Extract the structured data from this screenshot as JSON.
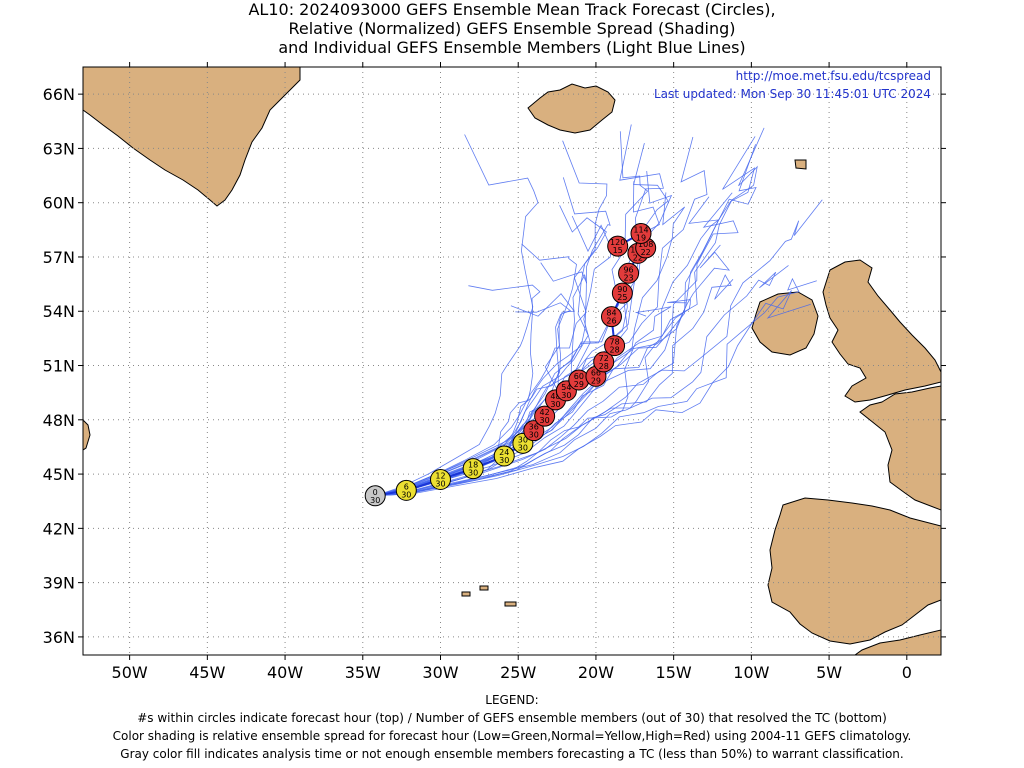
{
  "title": {
    "line1": "AL10: 2024093000 GEFS Ensemble Mean Track Forecast (Circles),",
    "line2": "Relative (Normalized) GEFS Ensemble Spread (Shading)",
    "line3": "and Individual GEFS Ensemble Members (Light Blue Lines)"
  },
  "header": {
    "url": "http://moe.met.fsu.edu/tcspread",
    "updated": "Last updated: Mon Sep 30 11:45:01 UTC 2024"
  },
  "axes": {
    "lat_labels": [
      "66N",
      "63N",
      "60N",
      "57N",
      "54N",
      "51N",
      "48N",
      "45N",
      "42N",
      "39N",
      "36N"
    ],
    "lon_labels": [
      "50W",
      "45W",
      "40W",
      "35W",
      "30W",
      "25W",
      "20W",
      "15W",
      "10W",
      "5W",
      "0"
    ],
    "lat_range": [
      35,
      67.5
    ],
    "lon_range": [
      -53,
      2.2
    ]
  },
  "colors": {
    "land": "#d9b07f",
    "member_lines": "#4466ee",
    "mean_track": "#1a35d8",
    "analysis": "#c8c8c8",
    "normal_spread": "#ece032",
    "high_spread": "#e23b3b"
  },
  "track": [
    {
      "hour": "0",
      "members": "30",
      "lon": -34.2,
      "lat": 43.8,
      "spread": "gray"
    },
    {
      "hour": "6",
      "members": "30",
      "lon": -32.2,
      "lat": 44.1,
      "spread": "normal"
    },
    {
      "hour": "12",
      "members": "30",
      "lon": -30.0,
      "lat": 44.7,
      "spread": "normal"
    },
    {
      "hour": "18",
      "members": "30",
      "lon": -27.9,
      "lat": 45.3,
      "spread": "normal"
    },
    {
      "hour": "24",
      "members": "30",
      "lon": -25.9,
      "lat": 46.0,
      "spread": "normal"
    },
    {
      "hour": "30",
      "members": "30",
      "lon": -24.7,
      "lat": 46.7,
      "spread": "normal"
    },
    {
      "hour": "36",
      "members": "30",
      "lon": -24.0,
      "lat": 47.4,
      "spread": "high"
    },
    {
      "hour": "42",
      "members": "30",
      "lon": -23.3,
      "lat": 48.2,
      "spread": "high"
    },
    {
      "hour": "48",
      "members": "30",
      "lon": -22.6,
      "lat": 49.1,
      "spread": "high"
    },
    {
      "hour": "54",
      "members": "30",
      "lon": -21.9,
      "lat": 49.6,
      "spread": "high"
    },
    {
      "hour": "60",
      "members": "29",
      "lon": -21.1,
      "lat": 50.2,
      "spread": "high"
    },
    {
      "hour": "66",
      "members": "29",
      "lon": -20.0,
      "lat": 50.4,
      "spread": "high"
    },
    {
      "hour": "72",
      "members": "28",
      "lon": -19.5,
      "lat": 51.2,
      "spread": "high"
    },
    {
      "hour": "78",
      "members": "28",
      "lon": -18.8,
      "lat": 52.1,
      "spread": "high"
    },
    {
      "hour": "84",
      "members": "26",
      "lon": -19.0,
      "lat": 53.7,
      "spread": "high"
    },
    {
      "hour": "90",
      "members": "25",
      "lon": -18.3,
      "lat": 55.0,
      "spread": "high"
    },
    {
      "hour": "96",
      "members": "23",
      "lon": -17.9,
      "lat": 56.1,
      "spread": "high"
    },
    {
      "hour": "102",
      "members": "22",
      "lon": -17.3,
      "lat": 57.2,
      "spread": "high"
    },
    {
      "hour": "108",
      "members": "22",
      "lon": -16.8,
      "lat": 57.5,
      "spread": "high"
    },
    {
      "hour": "114",
      "members": "19",
      "lon": -17.1,
      "lat": 58.3,
      "spread": "high"
    },
    {
      "hour": "120",
      "members": "15",
      "lon": -18.6,
      "lat": 57.6,
      "spread": "high"
    }
  ],
  "legend": {
    "heading": "LEGEND:",
    "line1": "#s within circles indicate forecast hour (top) / Number of GEFS ensemble members (out of 30) that resolved the TC (bottom)",
    "line2": "Color shading is relative ensemble spread for forecast hour (Low=Green,Normal=Yellow,High=Red) using 2004-11 GEFS climatology.",
    "line3": "Gray color fill indicates analysis time or not enough ensemble members forecasting a TC (less than 50%) to warrant classification."
  }
}
